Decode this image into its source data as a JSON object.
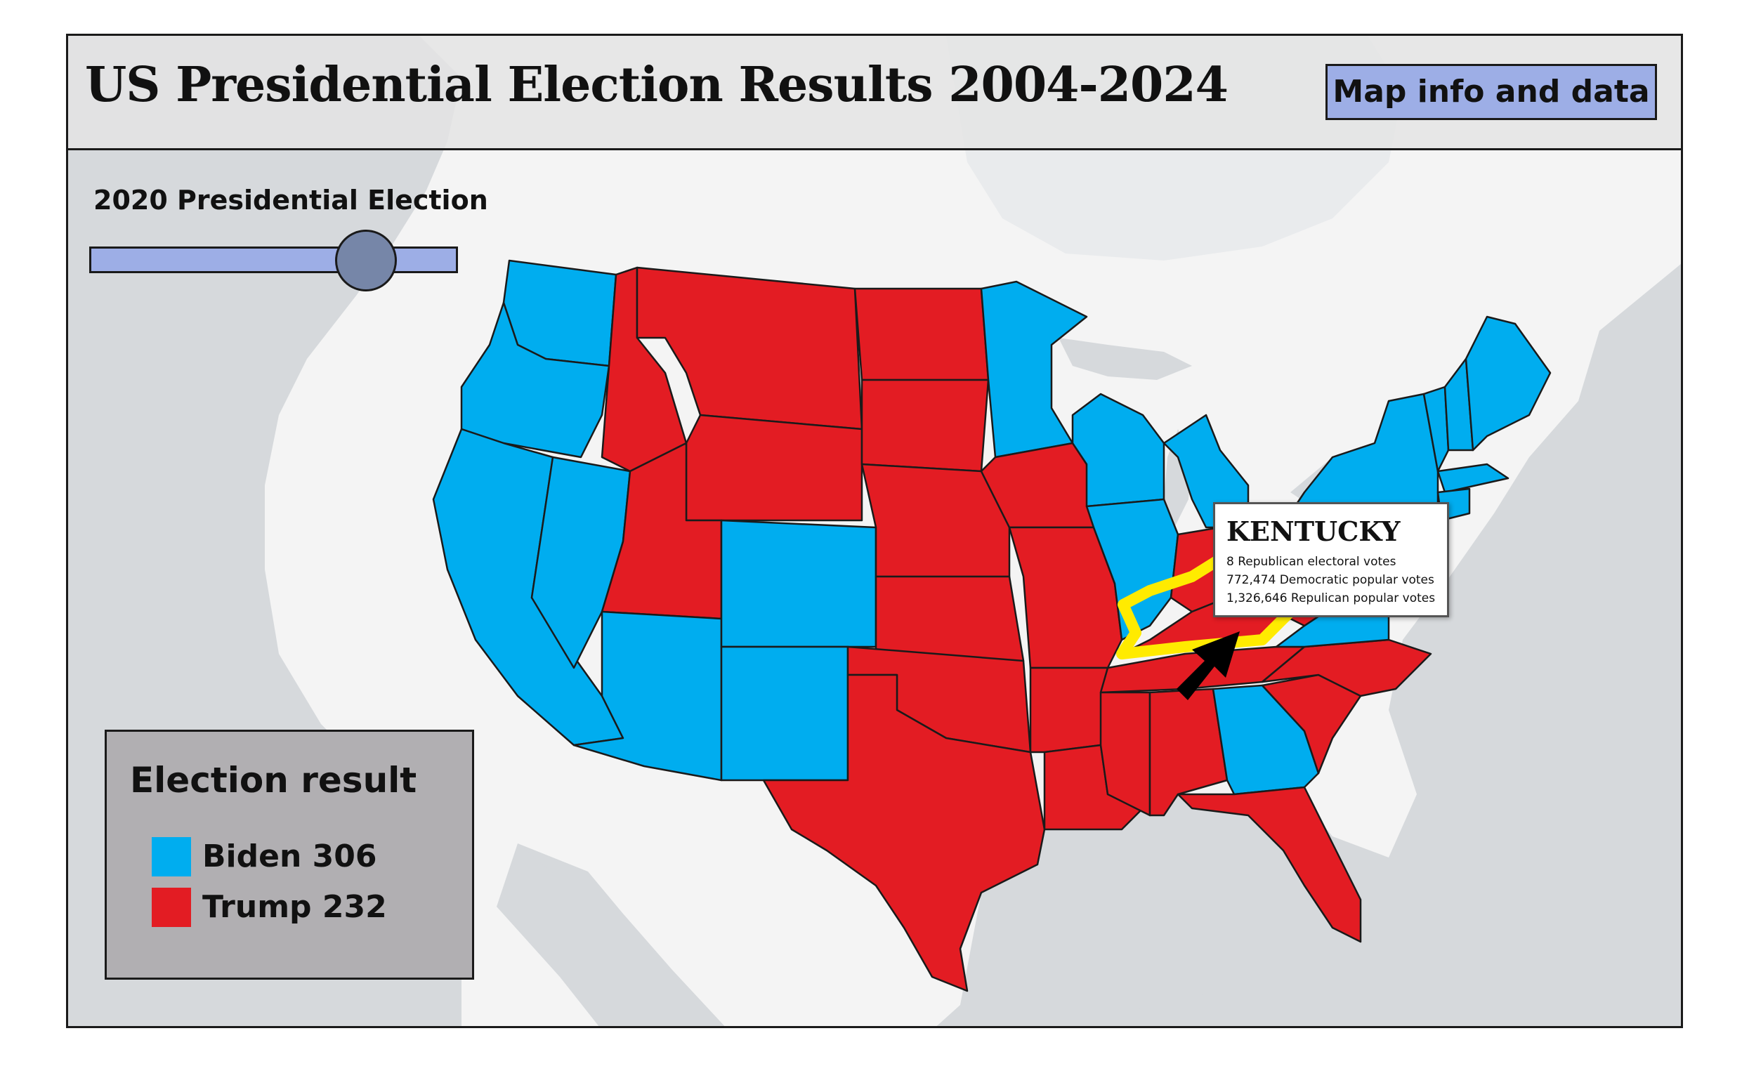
{
  "header": {
    "title": "US Presidential Election Results 2004-2024",
    "info_button": "Map info and data"
  },
  "timeline": {
    "label": "2020 Presidential Election",
    "slider_fraction": 0.8
  },
  "legend": {
    "title": "Election result",
    "items": [
      {
        "label": "Biden 306",
        "color": "#00adef"
      },
      {
        "label": "Trump 232",
        "color": "#e31c23"
      }
    ]
  },
  "tooltip": {
    "title": "KENTUCKY",
    "lines": [
      "8 Republican electoral votes",
      "772,474 Democratic popular votes",
      "1,326,646 Repulican popular votes"
    ]
  },
  "colors": {
    "democratic": "#00adef",
    "republican": "#e31c23",
    "highlight": "#ffeb00",
    "ocean": "#d6d9dc",
    "land": "#f4f4f4"
  },
  "map": {
    "highlighted_state": "Kentucky",
    "states": [
      {
        "name": "Washington",
        "winner": "democratic"
      },
      {
        "name": "Oregon",
        "winner": "democratic"
      },
      {
        "name": "California",
        "winner": "democratic"
      },
      {
        "name": "Nevada",
        "winner": "democratic"
      },
      {
        "name": "Idaho",
        "winner": "republican"
      },
      {
        "name": "Montana",
        "winner": "republican"
      },
      {
        "name": "Wyoming",
        "winner": "republican"
      },
      {
        "name": "Utah",
        "winner": "republican"
      },
      {
        "name": "Arizona",
        "winner": "democratic"
      },
      {
        "name": "Colorado",
        "winner": "democratic"
      },
      {
        "name": "New Mexico",
        "winner": "democratic"
      },
      {
        "name": "North Dakota",
        "winner": "republican"
      },
      {
        "name": "South Dakota",
        "winner": "republican"
      },
      {
        "name": "Nebraska",
        "winner": "republican"
      },
      {
        "name": "Kansas",
        "winner": "republican"
      },
      {
        "name": "Oklahoma",
        "winner": "republican"
      },
      {
        "name": "Texas",
        "winner": "republican"
      },
      {
        "name": "Minnesota",
        "winner": "democratic"
      },
      {
        "name": "Iowa",
        "winner": "republican"
      },
      {
        "name": "Missouri",
        "winner": "republican"
      },
      {
        "name": "Arkansas",
        "winner": "republican"
      },
      {
        "name": "Louisiana",
        "winner": "republican"
      },
      {
        "name": "Wisconsin",
        "winner": "democratic"
      },
      {
        "name": "Illinois",
        "winner": "democratic"
      },
      {
        "name": "Michigan",
        "winner": "democratic"
      },
      {
        "name": "Indiana",
        "winner": "republican"
      },
      {
        "name": "Ohio",
        "winner": "republican"
      },
      {
        "name": "Kentucky",
        "winner": "republican"
      },
      {
        "name": "Tennessee",
        "winner": "republican"
      },
      {
        "name": "Mississippi",
        "winner": "republican"
      },
      {
        "name": "Alabama",
        "winner": "republican"
      },
      {
        "name": "Georgia",
        "winner": "democratic"
      },
      {
        "name": "Florida",
        "winner": "republican"
      },
      {
        "name": "South Carolina",
        "winner": "republican"
      },
      {
        "name": "North Carolina",
        "winner": "republican"
      },
      {
        "name": "Virginia",
        "winner": "democratic"
      },
      {
        "name": "West Virginia",
        "winner": "republican"
      },
      {
        "name": "Pennsylvania",
        "winner": "democratic"
      },
      {
        "name": "New York",
        "winner": "democratic"
      },
      {
        "name": "Vermont",
        "winner": "democratic"
      },
      {
        "name": "New Hampshire",
        "winner": "democratic"
      },
      {
        "name": "Maine",
        "winner": "democratic"
      },
      {
        "name": "Massachusetts",
        "winner": "democratic"
      },
      {
        "name": "Connecticut",
        "winner": "democratic"
      },
      {
        "name": "New Jersey",
        "winner": "democratic"
      }
    ]
  }
}
